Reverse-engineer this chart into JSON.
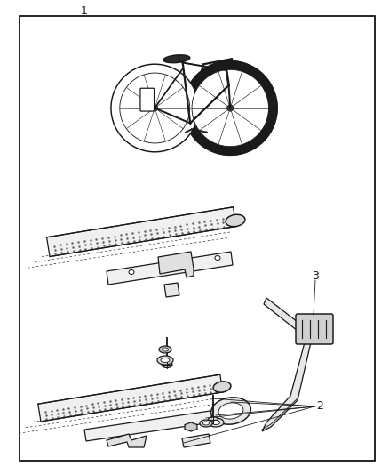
{
  "bg_color": "#ffffff",
  "line_color": "#1a1a1a",
  "border_color": "#000000",
  "label_1": "1",
  "label_2": "2",
  "label_3": "3",
  "fig_width": 4.38,
  "fig_height": 5.33,
  "dpi": 100
}
